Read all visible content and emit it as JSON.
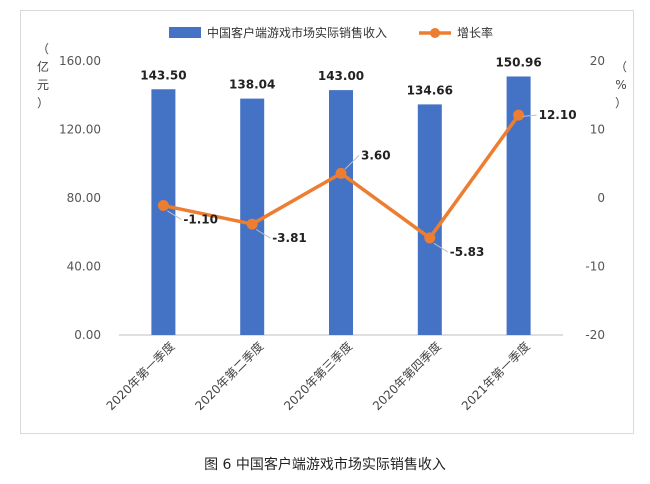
{
  "chart_data": {
    "type": "bar",
    "title": "",
    "categories": [
      "2020年第一季度",
      "2020年第二季度",
      "2020年第三季度",
      "2020年第四季度",
      "2021年第一季度"
    ],
    "series": [
      {
        "name": "中国客户端游戏市场实际销售收入",
        "type": "bar",
        "axis": "left",
        "color": "#4472c4",
        "values": [
          143.5,
          138.04,
          143.0,
          134.66,
          150.96
        ],
        "labels": [
          "143.50",
          "138.04",
          "143.00",
          "134.66",
          "150.96"
        ]
      },
      {
        "name": "增长率",
        "type": "line",
        "axis": "right",
        "color": "#ed7d31",
        "values": [
          -1.1,
          -3.81,
          3.6,
          -5.83,
          12.1
        ],
        "labels": [
          "-1.10",
          "-3.81",
          "3.60",
          "-5.83",
          "12.10"
        ]
      }
    ],
    "y_left": {
      "label": "（亿元）",
      "min": 0,
      "max": 160,
      "ticks": [
        "0.00",
        "40.00",
        "80.00",
        "120.00",
        "160.00"
      ],
      "tick_values": [
        0,
        40,
        80,
        120,
        160
      ]
    },
    "y_right": {
      "label": "（%）",
      "min": -20,
      "max": 20,
      "ticks": [
        "-20",
        "-10",
        "0",
        "10",
        "20"
      ],
      "tick_values": [
        -20,
        -10,
        0,
        10,
        20
      ]
    },
    "legend_position": "top",
    "grid": false
  },
  "caption": "图 6  中国客户端游戏市场实际销售收入"
}
